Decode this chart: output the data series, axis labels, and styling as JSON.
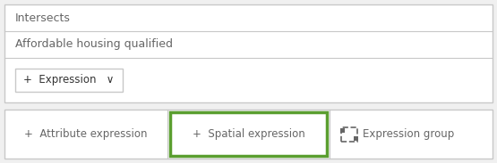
{
  "bg_color": "#f0f0f0",
  "white": "#ffffff",
  "border_color": "#c8c8c8",
  "green_border": "#5a9e2f",
  "text_color": "#666666",
  "dark_text": "#333333",
  "row1_text": "Intersects",
  "row2_text": "Affordable housing qualified",
  "expr_btn_text": "+  Expression   ∨",
  "btn1_text": "+  Attribute expression",
  "btn2_text": "+  Spatial expression",
  "btn3_text": "Expression group",
  "figw": 5.55,
  "figh": 1.83,
  "dpi": 100
}
